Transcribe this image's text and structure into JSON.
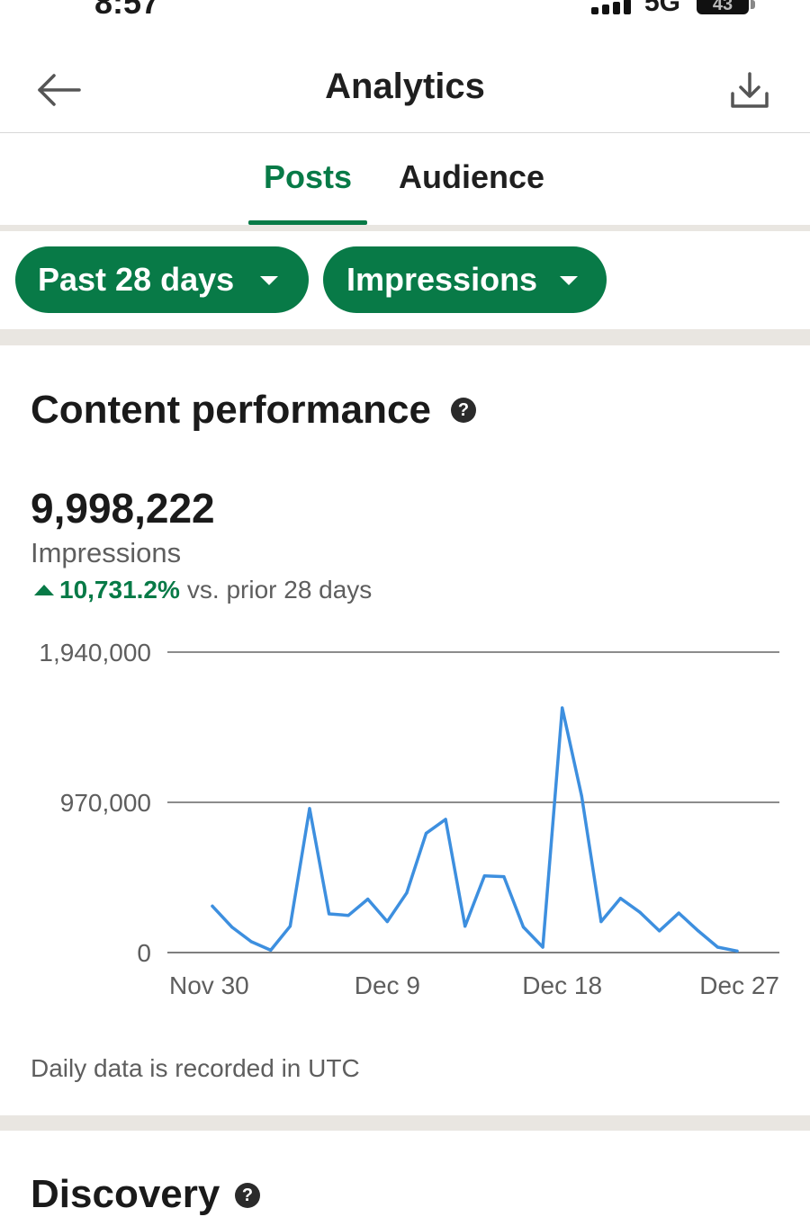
{
  "status": {
    "time": "8:57",
    "network": "5G",
    "battery": "43"
  },
  "header": {
    "title": "Analytics"
  },
  "tabs": [
    {
      "label": "Posts",
      "selected": true
    },
    {
      "label": "Audience",
      "selected": false
    }
  ],
  "filters": {
    "range": "Past 28 days",
    "metric": "Impressions"
  },
  "content": {
    "title": "Content performance",
    "help": "?",
    "total": "9,998,222",
    "metric_label": "Impressions",
    "change_pct": "10,731.2%",
    "change_text": "vs. prior 28 days",
    "footnote": "Daily data is recorded in UTC"
  },
  "discovery": {
    "title": "Discovery",
    "help": "?"
  },
  "colors": {
    "accent": "#087a47",
    "line": "#3d8fdf",
    "divider": "#e9e6e1"
  },
  "chart_data": {
    "type": "line",
    "x": [
      "Nov 30",
      "Dec 1",
      "Dec 2",
      "Dec 3",
      "Dec 4",
      "Dec 5",
      "Dec 6",
      "Dec 7",
      "Dec 8",
      "Dec 9",
      "Dec 10",
      "Dec 11",
      "Dec 12",
      "Dec 13",
      "Dec 14",
      "Dec 15",
      "Dec 16",
      "Dec 17",
      "Dec 18",
      "Dec 19",
      "Dec 20",
      "Dec 21",
      "Dec 22",
      "Dec 23",
      "Dec 24",
      "Dec 25",
      "Dec 26",
      "Dec 27"
    ],
    "series": [
      {
        "values": [
          300000,
          165000,
          70000,
          15000,
          170000,
          930000,
          250000,
          240000,
          345000,
          200000,
          385000,
          770000,
          860000,
          170000,
          495000,
          490000,
          165000,
          35000,
          1580000,
          1010000,
          200000,
          350000,
          260000,
          140000,
          255000,
          140000,
          35000,
          10000
        ]
      }
    ],
    "y_ticks": [
      "1,940,000",
      "970,000",
      "0"
    ],
    "x_ticks": [
      "Nov 30",
      "Dec 9",
      "Dec 18",
      "Dec 27"
    ],
    "ylim": [
      0,
      1940000
    ],
    "grid": true
  }
}
